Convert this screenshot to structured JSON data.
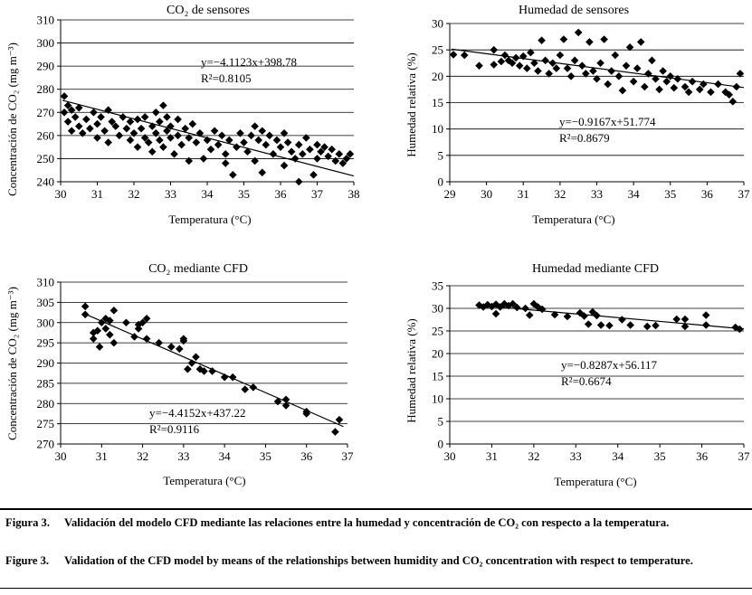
{
  "caption": {
    "es_label": "Figura 3.",
    "es_text": "Validación del modelo CFD mediante las relaciones entre la humedad y concentración de CO₂ con respecto a la temperatura.",
    "en_label": "Figure 3.",
    "en_text": "Validation of the CFD model by means of the relationships between humidity and CO₂ concentration with respect to temperature."
  },
  "chart_data": [
    {
      "id": "co2-sensors",
      "type": "scatter",
      "title": "CO₂ de sensores",
      "xlabel": "Temperatura (°C)",
      "ylabel": "Concentración de CO₂ (mg m⁻³)",
      "xlim": [
        30,
        38
      ],
      "ylim": [
        240,
        310
      ],
      "xticks": [
        30,
        31,
        32,
        33,
        34,
        35,
        36,
        37,
        38
      ],
      "yticks": [
        240,
        250,
        260,
        270,
        280,
        290,
        300,
        310
      ],
      "grid": "horizontal",
      "trendline": {
        "slope": -4.1123,
        "intercept": 398.78
      },
      "equation": "y=−4.1123x+398.78",
      "r2": "R²=0.8105",
      "points": [
        [
          30.1,
          277
        ],
        [
          30.1,
          270
        ],
        [
          30.2,
          273
        ],
        [
          30.2,
          266
        ],
        [
          30.3,
          271
        ],
        [
          30.3,
          262
        ],
        [
          30.4,
          268
        ],
        [
          30.5,
          272
        ],
        [
          30.5,
          264
        ],
        [
          30.6,
          261
        ],
        [
          30.7,
          267
        ],
        [
          30.8,
          263
        ],
        [
          30.9,
          270
        ],
        [
          31.0,
          259
        ],
        [
          31.0,
          265
        ],
        [
          31.1,
          268
        ],
        [
          31.2,
          262
        ],
        [
          31.3,
          271
        ],
        [
          31.3,
          257
        ],
        [
          31.4,
          266
        ],
        [
          31.5,
          264
        ],
        [
          31.6,
          260
        ],
        [
          31.7,
          268
        ],
        [
          31.8,
          263
        ],
        [
          31.9,
          258
        ],
        [
          31.9,
          266
        ],
        [
          32.0,
          261
        ],
        [
          32.1,
          267
        ],
        [
          32.1,
          255
        ],
        [
          32.2,
          263
        ],
        [
          32.3,
          259
        ],
        [
          32.3,
          268
        ],
        [
          32.4,
          257
        ],
        [
          32.5,
          264
        ],
        [
          32.5,
          253
        ],
        [
          32.6,
          270
        ],
        [
          32.6,
          261
        ],
        [
          32.7,
          258
        ],
        [
          32.7,
          266
        ],
        [
          32.8,
          273
        ],
        [
          32.8,
          255
        ],
        [
          32.9,
          262
        ],
        [
          32.9,
          268
        ],
        [
          33.0,
          259
        ],
        [
          33.0,
          264
        ],
        [
          33.1,
          252
        ],
        [
          33.2,
          267
        ],
        [
          33.2,
          260
        ],
        [
          33.3,
          256
        ],
        [
          33.4,
          263
        ],
        [
          33.5,
          249
        ],
        [
          33.5,
          259
        ],
        [
          33.6,
          265
        ],
        [
          33.7,
          257
        ],
        [
          33.8,
          261
        ],
        [
          33.9,
          250
        ],
        [
          34.0,
          258
        ],
        [
          34.1,
          254
        ],
        [
          34.2,
          262
        ],
        [
          34.3,
          256
        ],
        [
          34.4,
          260
        ],
        [
          34.5,
          248
        ],
        [
          34.5,
          252
        ],
        [
          34.6,
          258
        ],
        [
          34.7,
          243
        ],
        [
          34.8,
          255
        ],
        [
          34.9,
          261
        ],
        [
          35.0,
          257
        ],
        [
          35.1,
          253
        ],
        [
          35.2,
          260
        ],
        [
          35.3,
          264
        ],
        [
          35.3,
          249
        ],
        [
          35.4,
          258
        ],
        [
          35.5,
          244
        ],
        [
          35.5,
          262
        ],
        [
          35.6,
          256
        ],
        [
          35.7,
          260
        ],
        [
          35.8,
          252
        ],
        [
          35.9,
          258
        ],
        [
          36.0,
          255
        ],
        [
          36.1,
          261
        ],
        [
          36.1,
          247
        ],
        [
          36.2,
          257
        ],
        [
          36.3,
          253
        ],
        [
          36.4,
          250
        ],
        [
          36.5,
          240
        ],
        [
          36.5,
          256
        ],
        [
          36.6,
          252
        ],
        [
          36.7,
          259
        ],
        [
          36.8,
          254
        ],
        [
          36.9,
          243
        ],
        [
          37.0,
          256
        ],
        [
          37.0,
          250
        ],
        [
          37.1,
          253
        ],
        [
          37.2,
          255
        ],
        [
          37.3,
          251
        ],
        [
          37.4,
          254
        ],
        [
          37.5,
          249
        ],
        [
          37.6,
          252
        ],
        [
          37.7,
          248
        ],
        [
          37.8,
          250
        ],
        [
          37.9,
          252
        ]
      ]
    },
    {
      "id": "humidity-sensors",
      "type": "scatter",
      "title": "Humedad de sensores",
      "xlabel": "Temperatura (°C)",
      "ylabel": "Humedad relativa (%)",
      "xlim": [
        29,
        37
      ],
      "ylim": [
        0,
        30
      ],
      "xticks": [
        29,
        30,
        31,
        32,
        33,
        34,
        35,
        36,
        37
      ],
      "yticks": [
        0,
        5,
        10,
        15,
        20,
        25,
        30
      ],
      "grid": "horizontal",
      "trendline": {
        "slope": -0.9167,
        "intercept": 51.774
      },
      "equation": "y=−0.9167x+51.774",
      "r2": "R²=0.8679",
      "points": [
        [
          29.1,
          24.1
        ],
        [
          29.4,
          24.0
        ],
        [
          29.8,
          22.0
        ],
        [
          30.2,
          25.0
        ],
        [
          30.2,
          22.2
        ],
        [
          30.4,
          22.8
        ],
        [
          30.5,
          24.0
        ],
        [
          30.6,
          23.0
        ],
        [
          30.7,
          22.5
        ],
        [
          30.8,
          23.5
        ],
        [
          30.9,
          22.0
        ],
        [
          31.0,
          23.8
        ],
        [
          31.1,
          21.5
        ],
        [
          31.2,
          24.5
        ],
        [
          31.3,
          22.5
        ],
        [
          31.4,
          21.0
        ],
        [
          31.5,
          26.8
        ],
        [
          31.6,
          23.0
        ],
        [
          31.7,
          20.5
        ],
        [
          31.8,
          22.5
        ],
        [
          31.9,
          21.5
        ],
        [
          32.0,
          24.0
        ],
        [
          32.1,
          27.0
        ],
        [
          32.2,
          21.5
        ],
        [
          32.3,
          20.0
        ],
        [
          32.4,
          23.0
        ],
        [
          32.5,
          28.3
        ],
        [
          32.6,
          22.0
        ],
        [
          32.7,
          20.5
        ],
        [
          32.8,
          26.5
        ],
        [
          32.9,
          21.0
        ],
        [
          33.0,
          19.5
        ],
        [
          33.1,
          22.5
        ],
        [
          33.2,
          27.0
        ],
        [
          33.3,
          18.5
        ],
        [
          33.4,
          21.0
        ],
        [
          33.5,
          24.0
        ],
        [
          33.6,
          20.0
        ],
        [
          33.7,
          17.3
        ],
        [
          33.8,
          22.0
        ],
        [
          33.9,
          25.5
        ],
        [
          34.0,
          19.0
        ],
        [
          34.1,
          21.5
        ],
        [
          34.2,
          26.5
        ],
        [
          34.3,
          18.0
        ],
        [
          34.4,
          20.5
        ],
        [
          34.5,
          23.0
        ],
        [
          34.6,
          19.5
        ],
        [
          34.7,
          17.5
        ],
        [
          34.8,
          21.0
        ],
        [
          34.9,
          19.0
        ],
        [
          35.0,
          20.0
        ],
        [
          35.1,
          17.8
        ],
        [
          35.2,
          19.5
        ],
        [
          35.4,
          18.0
        ],
        [
          35.5,
          17.0
        ],
        [
          35.6,
          19.0
        ],
        [
          35.8,
          17.5
        ],
        [
          35.9,
          18.5
        ],
        [
          36.1,
          17.0
        ],
        [
          36.3,
          18.5
        ],
        [
          36.5,
          17.0
        ],
        [
          36.6,
          16.5
        ],
        [
          36.7,
          15.2
        ],
        [
          36.8,
          18.0
        ],
        [
          36.9,
          20.5
        ]
      ]
    },
    {
      "id": "co2-cfd",
      "type": "scatter",
      "title": "CO₂ mediante CFD",
      "xlabel": "Temperatura (°C)",
      "ylabel": "Concentración de CO₂ (mg m⁻³)",
      "xlim": [
        30,
        37
      ],
      "ylim": [
        270,
        310
      ],
      "xticks": [
        30,
        31,
        32,
        33,
        34,
        35,
        36,
        37
      ],
      "yticks": [
        270,
        275,
        280,
        285,
        290,
        295,
        300,
        305,
        310
      ],
      "grid": "horizontal",
      "trendline": {
        "slope": -4.4152,
        "intercept": 437.22
      },
      "equation": "y=−4.4152x+437.22",
      "r2": "R²=0.9116",
      "points": [
        [
          30.6,
          304
        ],
        [
          30.6,
          302
        ],
        [
          30.8,
          297.5
        ],
        [
          30.8,
          296
        ],
        [
          30.9,
          298
        ],
        [
          30.95,
          294
        ],
        [
          31.0,
          300
        ],
        [
          31.1,
          301
        ],
        [
          31.1,
          298.5
        ],
        [
          31.2,
          297
        ],
        [
          31.2,
          300.5
        ],
        [
          31.3,
          303
        ],
        [
          31.3,
          295
        ],
        [
          31.6,
          300
        ],
        [
          31.8,
          296.5
        ],
        [
          31.9,
          299.5
        ],
        [
          31.9,
          298.5
        ],
        [
          32.0,
          300
        ],
        [
          32.1,
          296
        ],
        [
          32.1,
          301
        ],
        [
          32.4,
          295
        ],
        [
          32.7,
          294
        ],
        [
          32.9,
          293.5
        ],
        [
          33.0,
          295.5
        ],
        [
          33.0,
          296
        ],
        [
          33.1,
          288.5
        ],
        [
          33.2,
          290
        ],
        [
          33.3,
          291.5
        ],
        [
          33.4,
          288.5
        ],
        [
          33.5,
          288
        ],
        [
          33.7,
          288
        ],
        [
          34.0,
          286.5
        ],
        [
          34.2,
          286.5
        ],
        [
          34.5,
          283.5
        ],
        [
          34.7,
          284
        ],
        [
          35.3,
          280.5
        ],
        [
          35.5,
          279.5
        ],
        [
          35.5,
          281
        ],
        [
          36.0,
          278
        ],
        [
          36.0,
          277.5
        ],
        [
          36.7,
          273
        ],
        [
          36.8,
          276
        ]
      ]
    },
    {
      "id": "humidity-cfd",
      "type": "scatter",
      "title": "Humedad mediante CFD",
      "xlabel": "Temperatura (°C)",
      "ylabel": "Humedad relativa (%)",
      "xlim": [
        30,
        37
      ],
      "ylim": [
        0,
        35
      ],
      "xticks": [
        30,
        31,
        32,
        33,
        34,
        35,
        36,
        37
      ],
      "yticks": [
        0,
        5,
        10,
        15,
        20,
        25,
        30,
        35
      ],
      "grid": "horizontal",
      "trendline": {
        "slope": -0.8287,
        "intercept": 56.117
      },
      "equation": "y=−0.8287x+56.117",
      "r2": "R²=0.6674",
      "points": [
        [
          30.7,
          30.7
        ],
        [
          30.8,
          30.3
        ],
        [
          30.9,
          30.8
        ],
        [
          31.0,
          30.4
        ],
        [
          31.1,
          28.8
        ],
        [
          31.1,
          30.9
        ],
        [
          31.2,
          30.3
        ],
        [
          31.3,
          31.0
        ],
        [
          31.4,
          30.6
        ],
        [
          31.5,
          31.0
        ],
        [
          31.6,
          30.2
        ],
        [
          31.8,
          30.0
        ],
        [
          31.9,
          28.5
        ],
        [
          32.0,
          31.0
        ],
        [
          32.1,
          30.3
        ],
        [
          32.2,
          29.8
        ],
        [
          32.5,
          28.6
        ],
        [
          32.8,
          28.2
        ],
        [
          33.1,
          29.0
        ],
        [
          33.2,
          28.3
        ],
        [
          33.3,
          26.5
        ],
        [
          33.4,
          29.2
        ],
        [
          33.5,
          28.4
        ],
        [
          33.6,
          26.3
        ],
        [
          33.8,
          26.2
        ],
        [
          34.1,
          27.5
        ],
        [
          34.3,
          26.3
        ],
        [
          34.7,
          26.0
        ],
        [
          34.9,
          26.2
        ],
        [
          35.4,
          27.6
        ],
        [
          35.6,
          26.0
        ],
        [
          35.6,
          27.6
        ],
        [
          36.1,
          28.5
        ],
        [
          36.1,
          26.3
        ],
        [
          36.8,
          25.8
        ],
        [
          36.9,
          25.4
        ]
      ]
    }
  ]
}
